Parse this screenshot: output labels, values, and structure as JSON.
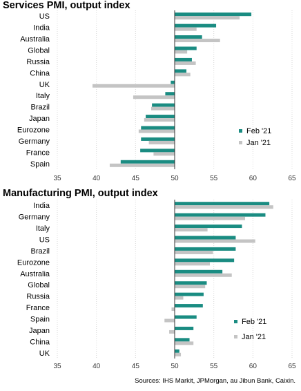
{
  "colors": {
    "feb": "#1a8c82",
    "jan": "#c4c4c4",
    "grid": "#d9d9d9",
    "axis": "#333333"
  },
  "source": "Sources: IHS Markit, JPMorgan, au Jibun Bank, Caixin.",
  "chart_data": [
    {
      "type": "bar",
      "orientation": "horizontal",
      "title": "Services PMI, output index",
      "categories": [
        "US",
        "India",
        "Australia",
        "Global",
        "Russia",
        "China",
        "UK",
        "Italy",
        "Brazil",
        "Japan",
        "Eurozone",
        "Germany",
        "France",
        "Spain"
      ],
      "series": [
        {
          "name": "Feb '21",
          "values": [
            59.8,
            55.3,
            53.5,
            52.8,
            52.2,
            51.5,
            49.5,
            48.8,
            47.1,
            46.3,
            45.7,
            45.7,
            45.6,
            43.1
          ]
        },
        {
          "name": "Jan '21",
          "values": [
            58.3,
            52.8,
            55.8,
            51.6,
            52.7,
            52.0,
            39.5,
            44.7,
            47.0,
            46.1,
            45.4,
            46.7,
            47.3,
            41.7
          ]
        }
      ],
      "xlim": [
        35,
        65
      ],
      "xticks": [
        "35",
        "40",
        "45",
        "50",
        "55",
        "60",
        "65"
      ],
      "legend_position": "bottom-right",
      "grid": true
    },
    {
      "type": "bar",
      "orientation": "horizontal",
      "title": "Manufacturing PMI, output index",
      "categories": [
        "India",
        "Germany",
        "Italy",
        "US",
        "Brazil",
        "Eurozone",
        "Australia",
        "Global",
        "Russia",
        "France",
        "Spain",
        "Japan",
        "China",
        "UK"
      ],
      "series": [
        {
          "name": "Feb '21",
          "values": [
            62.1,
            61.6,
            58.6,
            57.8,
            57.8,
            57.6,
            56.1,
            54.1,
            53.7,
            53.6,
            52.8,
            52.4,
            51.9,
            50.6
          ]
        },
        {
          "name": "Jan '21",
          "values": [
            62.6,
            59.0,
            54.2,
            60.3,
            54.9,
            54.5,
            57.3,
            53.9,
            51.1,
            49.6,
            48.7,
            49.3,
            52.4,
            50.8
          ]
        }
      ],
      "xlim": [
        35,
        65
      ],
      "xticks": [
        "35",
        "40",
        "45",
        "50",
        "55",
        "60",
        "65"
      ],
      "legend_position": "bottom-right",
      "grid": true
    }
  ]
}
